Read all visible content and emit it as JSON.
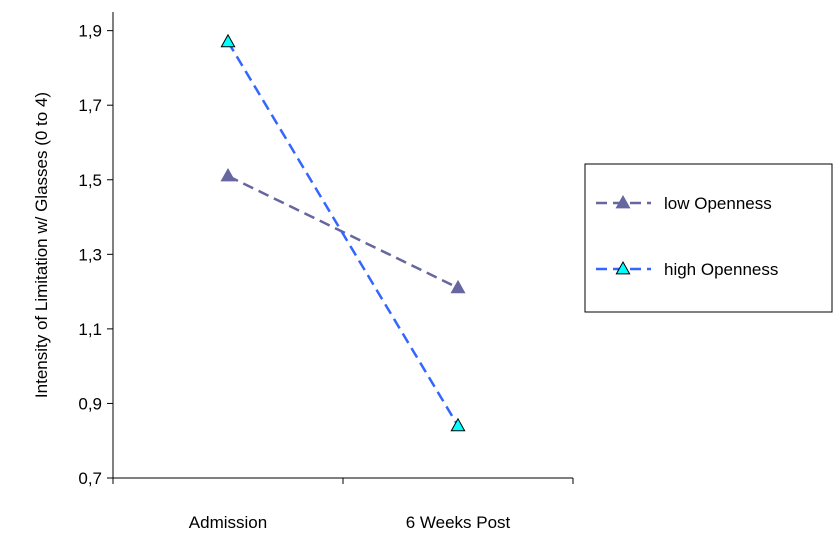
{
  "chart_data": {
    "type": "line",
    "title": "",
    "xlabel": "",
    "ylabel": "Intensity of Limitation w/ Glasses (0 to 4)",
    "categories": [
      "Admission",
      "6 Weeks Post"
    ],
    "ylim": [
      0.7,
      1.95
    ],
    "y_ticks": [
      "0,7",
      "0,9",
      "1,1",
      "1,3",
      "1,5",
      "1,7",
      "1,9"
    ],
    "y_tick_values": [
      0.7,
      0.9,
      1.1,
      1.3,
      1.5,
      1.7,
      1.9
    ],
    "grid": false,
    "legend_position": "right",
    "series": [
      {
        "name": "low Openness",
        "values": [
          1.51,
          1.21
        ],
        "color": "#6666a0",
        "marker_fill": "#6666a0",
        "line_style": "dashed",
        "marker": "triangle"
      },
      {
        "name": "high Openness",
        "values": [
          1.87,
          0.84
        ],
        "color": "#3366ff",
        "marker_fill": "#00ffff",
        "line_style": "dashed",
        "marker": "triangle"
      }
    ]
  }
}
